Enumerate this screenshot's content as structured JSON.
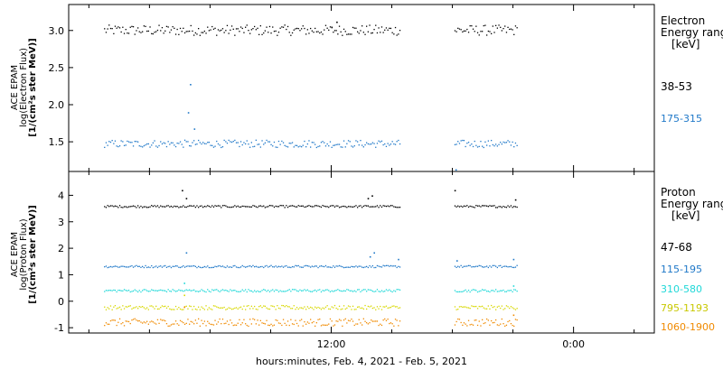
{
  "chart_data": [
    {
      "type": "scatter",
      "panel": "electron",
      "ylabel_lines": [
        "ACE EPAM",
        "log(Electron Flux)",
        "[1/(cm²s ster MeV)]"
      ],
      "ylim": [
        1.1,
        3.35
      ],
      "yticks": [
        1.5,
        2.0,
        2.5,
        3.0
      ],
      "ytick_labels": [
        "1.5",
        "2.0",
        "2.5",
        "3.0"
      ],
      "legend_title_lines": [
        "Electron",
        "Energy ranges",
        "[keV]"
      ],
      "series": [
        {
          "name": "38-53",
          "color": "#000000",
          "level": 3.01,
          "noise": 0.07,
          "spikes": [
            {
              "t": 0.0,
              "y": 3.05
            },
            {
              "t": 0.25,
              "y": 3.12
            }
          ],
          "segments": [
            [
              -11.25,
              3.4
            ],
            [
              6.1,
              9.2
            ]
          ]
        },
        {
          "name": "175-315",
          "color": "#1f78c8",
          "level": 1.48,
          "noise": 0.05,
          "spikes": [
            {
              "t": -7.0,
              "y": 2.28
            },
            {
              "t": -7.1,
              "y": 1.9
            },
            {
              "t": -6.8,
              "y": 1.68
            },
            {
              "t": 6.15,
              "y": 1.13
            }
          ],
          "segments": [
            [
              -11.25,
              3.4
            ],
            [
              6.1,
              9.2
            ]
          ]
        }
      ]
    },
    {
      "type": "scatter",
      "panel": "proton",
      "ylabel_lines": [
        "ACE EPAM",
        "log(Proton Flux)",
        "[1/(cm²s ster MeV)]"
      ],
      "ylim": [
        -1.2,
        4.9
      ],
      "yticks": [
        -1,
        0,
        1,
        2,
        3,
        4
      ],
      "ytick_labels": [
        "-1",
        "0",
        "1",
        "2",
        "3",
        "4"
      ],
      "legend_title_lines": [
        "Proton",
        "Energy ranges",
        "[keV]"
      ],
      "series": [
        {
          "name": "47-68",
          "color": "#000000",
          "level": 3.6,
          "noise": 0.04,
          "spikes": [
            {
              "t": -7.4,
              "y": 4.2
            },
            {
              "t": -7.2,
              "y": 3.9
            },
            {
              "t": 1.8,
              "y": 3.9
            },
            {
              "t": 2.0,
              "y": 4.0
            },
            {
              "t": 6.1,
              "y": 4.2
            },
            {
              "t": 9.1,
              "y": 3.85
            }
          ],
          "segments": [
            [
              -11.25,
              3.4
            ],
            [
              6.1,
              9.2
            ]
          ]
        },
        {
          "name": "115-195",
          "color": "#1f78c8",
          "level": 1.33,
          "noise": 0.04,
          "spikes": [
            {
              "t": -7.2,
              "y": 1.85
            },
            {
              "t": 1.9,
              "y": 1.7
            },
            {
              "t": 2.1,
              "y": 1.85
            },
            {
              "t": 3.3,
              "y": 1.6
            },
            {
              "t": 6.2,
              "y": 1.55
            },
            {
              "t": 9.0,
              "y": 1.6
            }
          ],
          "segments": [
            [
              -11.25,
              3.4
            ],
            [
              6.1,
              9.2
            ]
          ]
        },
        {
          "name": "310-580",
          "color": "#20d8d8",
          "level": 0.42,
          "noise": 0.05,
          "spikes": [
            {
              "t": -7.3,
              "y": 0.7
            },
            {
              "t": 9.0,
              "y": 0.6
            }
          ],
          "segments": [
            [
              -11.25,
              3.4
            ],
            [
              6.1,
              9.2
            ]
          ]
        },
        {
          "name": "795-1193",
          "color": "#d8d800",
          "level": -0.22,
          "noise": 0.08,
          "spikes": [
            {
              "t": -7.3,
              "y": 0.25
            }
          ],
          "segments": [
            [
              -11.25,
              3.4
            ],
            [
              6.1,
              9.2
            ]
          ]
        },
        {
          "name": "1060-1900",
          "color": "#f08a00",
          "level": -0.78,
          "noise": 0.14,
          "spikes": [
            {
              "t": -7.3,
              "y": -0.2
            },
            {
              "t": 9.0,
              "y": -0.5
            }
          ],
          "segments": [
            [
              -11.25,
              3.4
            ],
            [
              6.1,
              9.2
            ]
          ]
        }
      ]
    }
  ],
  "x_axis": {
    "range_hours": [
      -13,
      16
    ],
    "ticks": [
      {
        "t": 0,
        "label": "12:00"
      },
      {
        "t": 12,
        "label": "0:00"
      }
    ],
    "xlabel": "hours:minutes, Feb.  4, 2021 - Feb.  5, 2021"
  }
}
